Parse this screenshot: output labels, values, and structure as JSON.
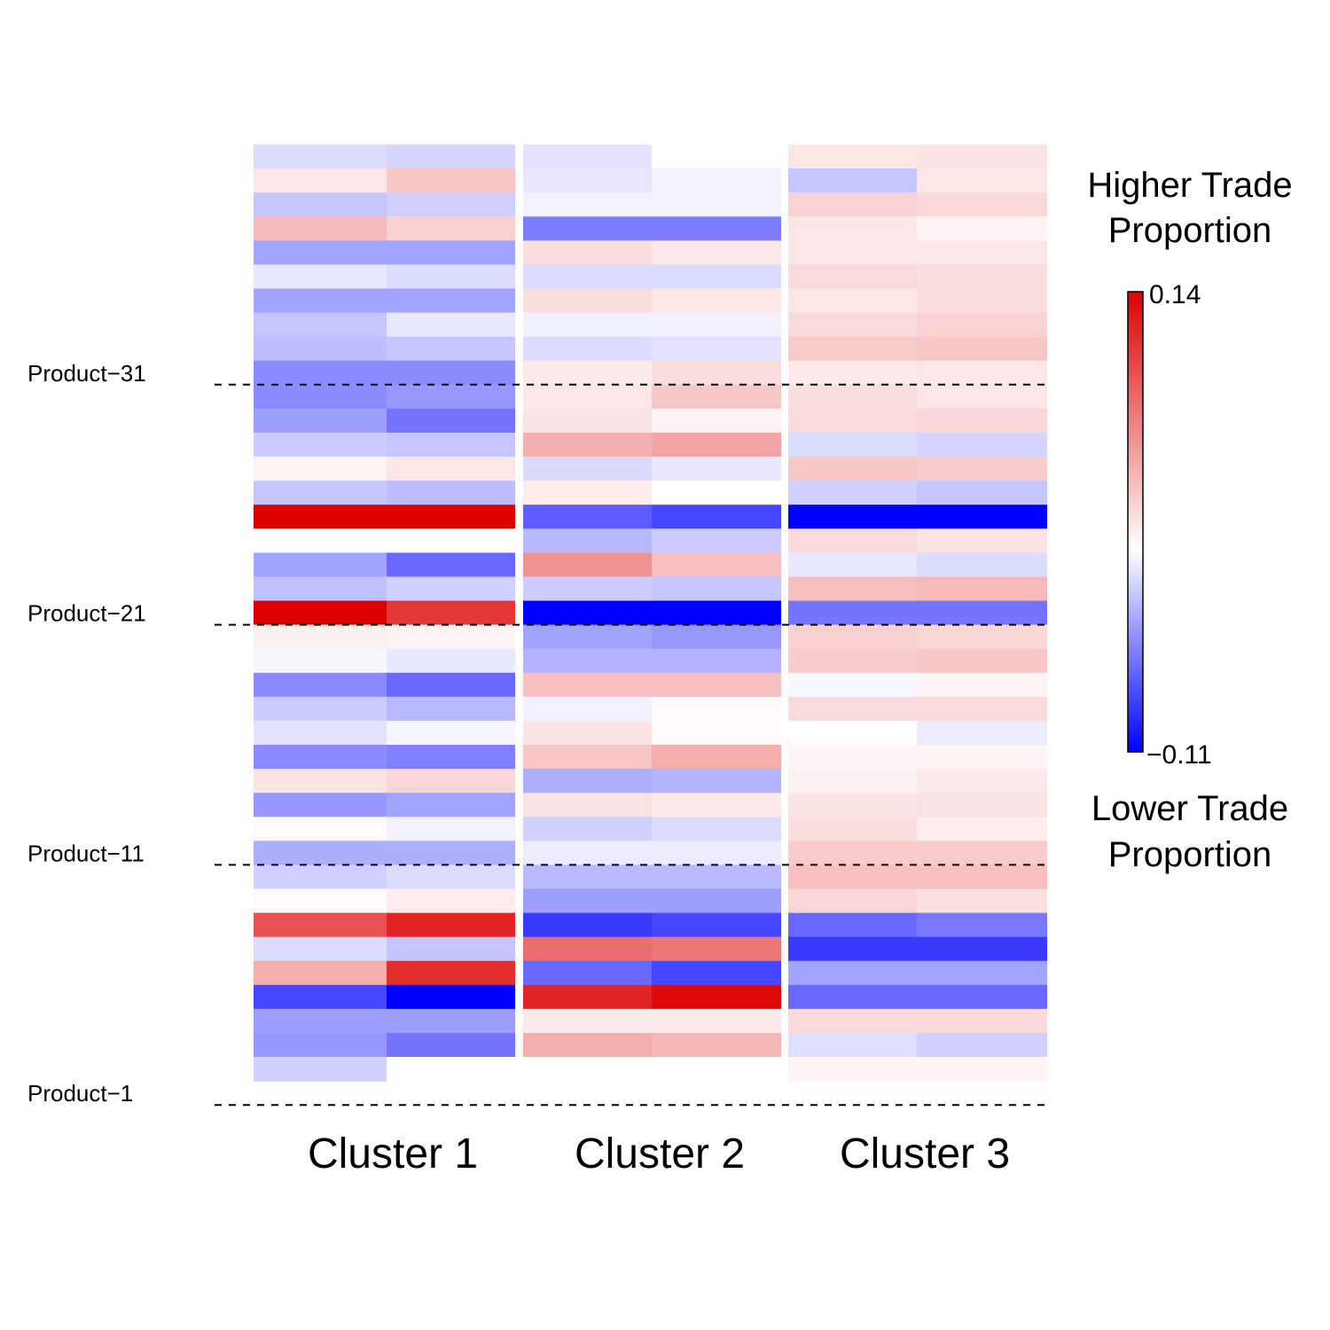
{
  "chart_data": {
    "type": "heatmap",
    "color_scale": {
      "min": -0.11,
      "max": 0.14,
      "min_label": "−0.11",
      "max_label": "0.14",
      "low_color": "#0000ff",
      "mid_color": "#ffffff",
      "high_color": "#dd0000"
    },
    "legend": {
      "top_title": [
        "Higher Trade",
        "Proportion"
      ],
      "bottom_title": [
        "Lower Trade",
        "Proportion"
      ]
    },
    "clusters": [
      "Cluster 1",
      "Cluster 2",
      "Cluster 3"
    ],
    "row_labels": [
      {
        "label": "Product−1",
        "after_row": 40
      },
      {
        "label": "Product−11",
        "after_row": 30
      },
      {
        "label": "Product−21",
        "after_row": 20
      },
      {
        "label": "Product−31",
        "after_row": 10
      }
    ],
    "rows": [
      [
        -0.015,
        -0.018,
        -0.012,
        0.001,
        0.014,
        0.015
      ],
      [
        0.013,
        0.031,
        -0.01,
        -0.006,
        -0.025,
        0.013
      ],
      [
        -0.025,
        -0.021,
        -0.006,
        -0.006,
        0.024,
        0.021
      ],
      [
        0.037,
        0.025,
        -0.056,
        -0.056,
        0.014,
        0.006
      ],
      [
        -0.04,
        -0.04,
        0.018,
        0.013,
        0.014,
        0.013
      ],
      [
        -0.01,
        -0.015,
        -0.015,
        -0.016,
        0.02,
        0.018
      ],
      [
        -0.04,
        -0.04,
        0.018,
        0.014,
        0.013,
        0.018
      ],
      [
        -0.025,
        -0.01,
        -0.006,
        -0.006,
        0.02,
        0.024
      ],
      [
        -0.028,
        -0.025,
        -0.015,
        -0.012,
        0.029,
        0.031
      ],
      [
        -0.05,
        -0.05,
        0.012,
        0.018,
        0.012,
        0.013
      ],
      [
        -0.05,
        -0.045,
        0.014,
        0.031,
        0.018,
        0.014
      ],
      [
        -0.042,
        -0.06,
        0.015,
        0.006,
        0.02,
        0.022
      ],
      [
        -0.022,
        -0.025,
        0.043,
        0.05,
        -0.015,
        -0.018
      ],
      [
        0.006,
        0.014,
        -0.016,
        -0.01,
        0.03,
        0.028
      ],
      [
        -0.025,
        -0.028,
        0.01,
        0.0,
        -0.02,
        -0.025
      ],
      [
        0.14,
        0.14,
        -0.07,
        -0.08,
        -0.11,
        -0.11
      ],
      [
        0.0,
        0.0,
        -0.03,
        -0.022,
        0.02,
        0.015
      ],
      [
        -0.04,
        -0.065,
        0.06,
        0.035,
        -0.01,
        -0.015
      ],
      [
        -0.027,
        -0.02,
        -0.022,
        -0.025,
        0.035,
        0.038
      ],
      [
        0.14,
        0.11,
        -0.11,
        -0.11,
        -0.06,
        -0.06
      ],
      [
        0.008,
        0.006,
        -0.04,
        -0.045,
        0.025,
        0.022
      ],
      [
        -0.004,
        -0.01,
        -0.033,
        -0.033,
        0.028,
        0.03
      ],
      [
        -0.05,
        -0.065,
        0.035,
        0.035,
        -0.003,
        0.005
      ],
      [
        -0.022,
        -0.03,
        -0.006,
        0.002,
        0.02,
        0.02
      ],
      [
        -0.012,
        -0.004,
        0.015,
        0.002,
        0.0,
        -0.008
      ],
      [
        -0.05,
        -0.055,
        0.03,
        0.045,
        0.005,
        0.006
      ],
      [
        0.015,
        0.022,
        -0.035,
        -0.033,
        0.007,
        0.012
      ],
      [
        -0.045,
        -0.04,
        0.016,
        0.012,
        0.015,
        0.016
      ],
      [
        0.003,
        -0.006,
        -0.02,
        -0.015,
        0.018,
        0.01
      ],
      [
        -0.035,
        -0.035,
        -0.008,
        -0.008,
        0.028,
        0.028
      ],
      [
        -0.02,
        -0.015,
        -0.03,
        -0.03,
        0.035,
        0.035
      ],
      [
        0.003,
        0.01,
        -0.042,
        -0.042,
        0.022,
        0.017
      ],
      [
        0.095,
        0.12,
        -0.085,
        -0.08,
        -0.065,
        -0.058
      ],
      [
        -0.015,
        -0.025,
        0.08,
        0.075,
        -0.085,
        -0.085
      ],
      [
        0.045,
        0.115,
        -0.065,
        -0.08,
        -0.04,
        -0.04
      ],
      [
        -0.08,
        -0.11,
        0.12,
        0.135,
        -0.065,
        -0.065
      ],
      [
        -0.042,
        -0.042,
        0.012,
        0.012,
        0.02,
        0.02
      ],
      [
        -0.045,
        -0.06,
        0.045,
        0.04,
        -0.014,
        -0.02
      ],
      [
        -0.02,
        0.0,
        0.0,
        0.0,
        0.006,
        0.006
      ]
    ]
  }
}
